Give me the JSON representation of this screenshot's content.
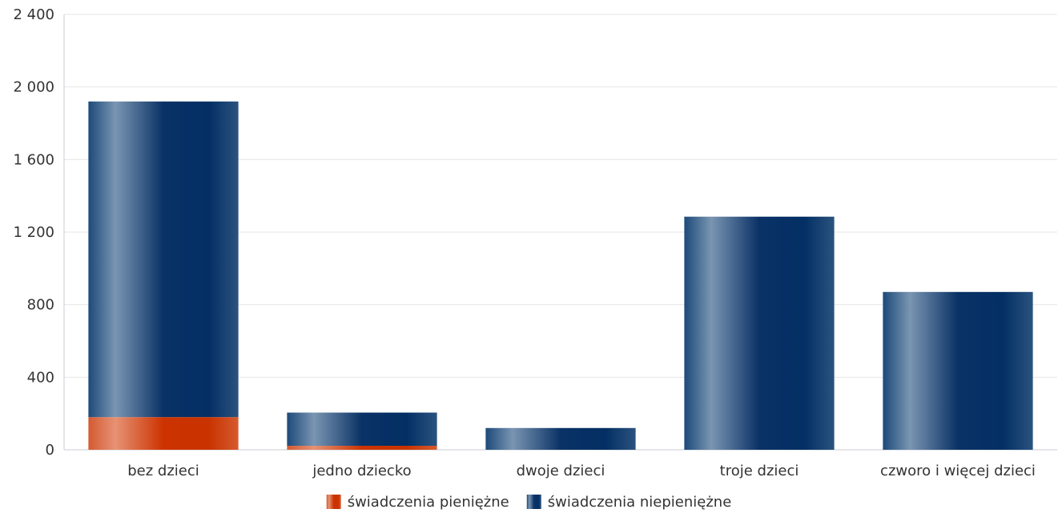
{
  "chart_data": {
    "type": "bar",
    "stacked": true,
    "categories": [
      "bez dzieci",
      "jedno dziecko",
      "dwoje dzieci",
      "troje dzieci",
      "czworo i więcej dzieci"
    ],
    "series": [
      {
        "name": "świadczenia pieniężne",
        "values": [
          180,
          22,
          0,
          0,
          0
        ],
        "color": "#cc3300"
      },
      {
        "name": "świadczenia niepieniężne",
        "values": [
          1740,
          183,
          120,
          1285,
          870
        ],
        "color": "#0a3266"
      }
    ],
    "ylim": [
      0,
      2400
    ],
    "yticks": [
      0,
      400,
      800,
      1200,
      1600,
      2000,
      2400
    ],
    "ytick_labels": [
      "0",
      "400",
      "800",
      "1 200",
      "1 600",
      "2 000",
      "2 400"
    ],
    "grid": true,
    "legend_position": "bottom-center"
  }
}
